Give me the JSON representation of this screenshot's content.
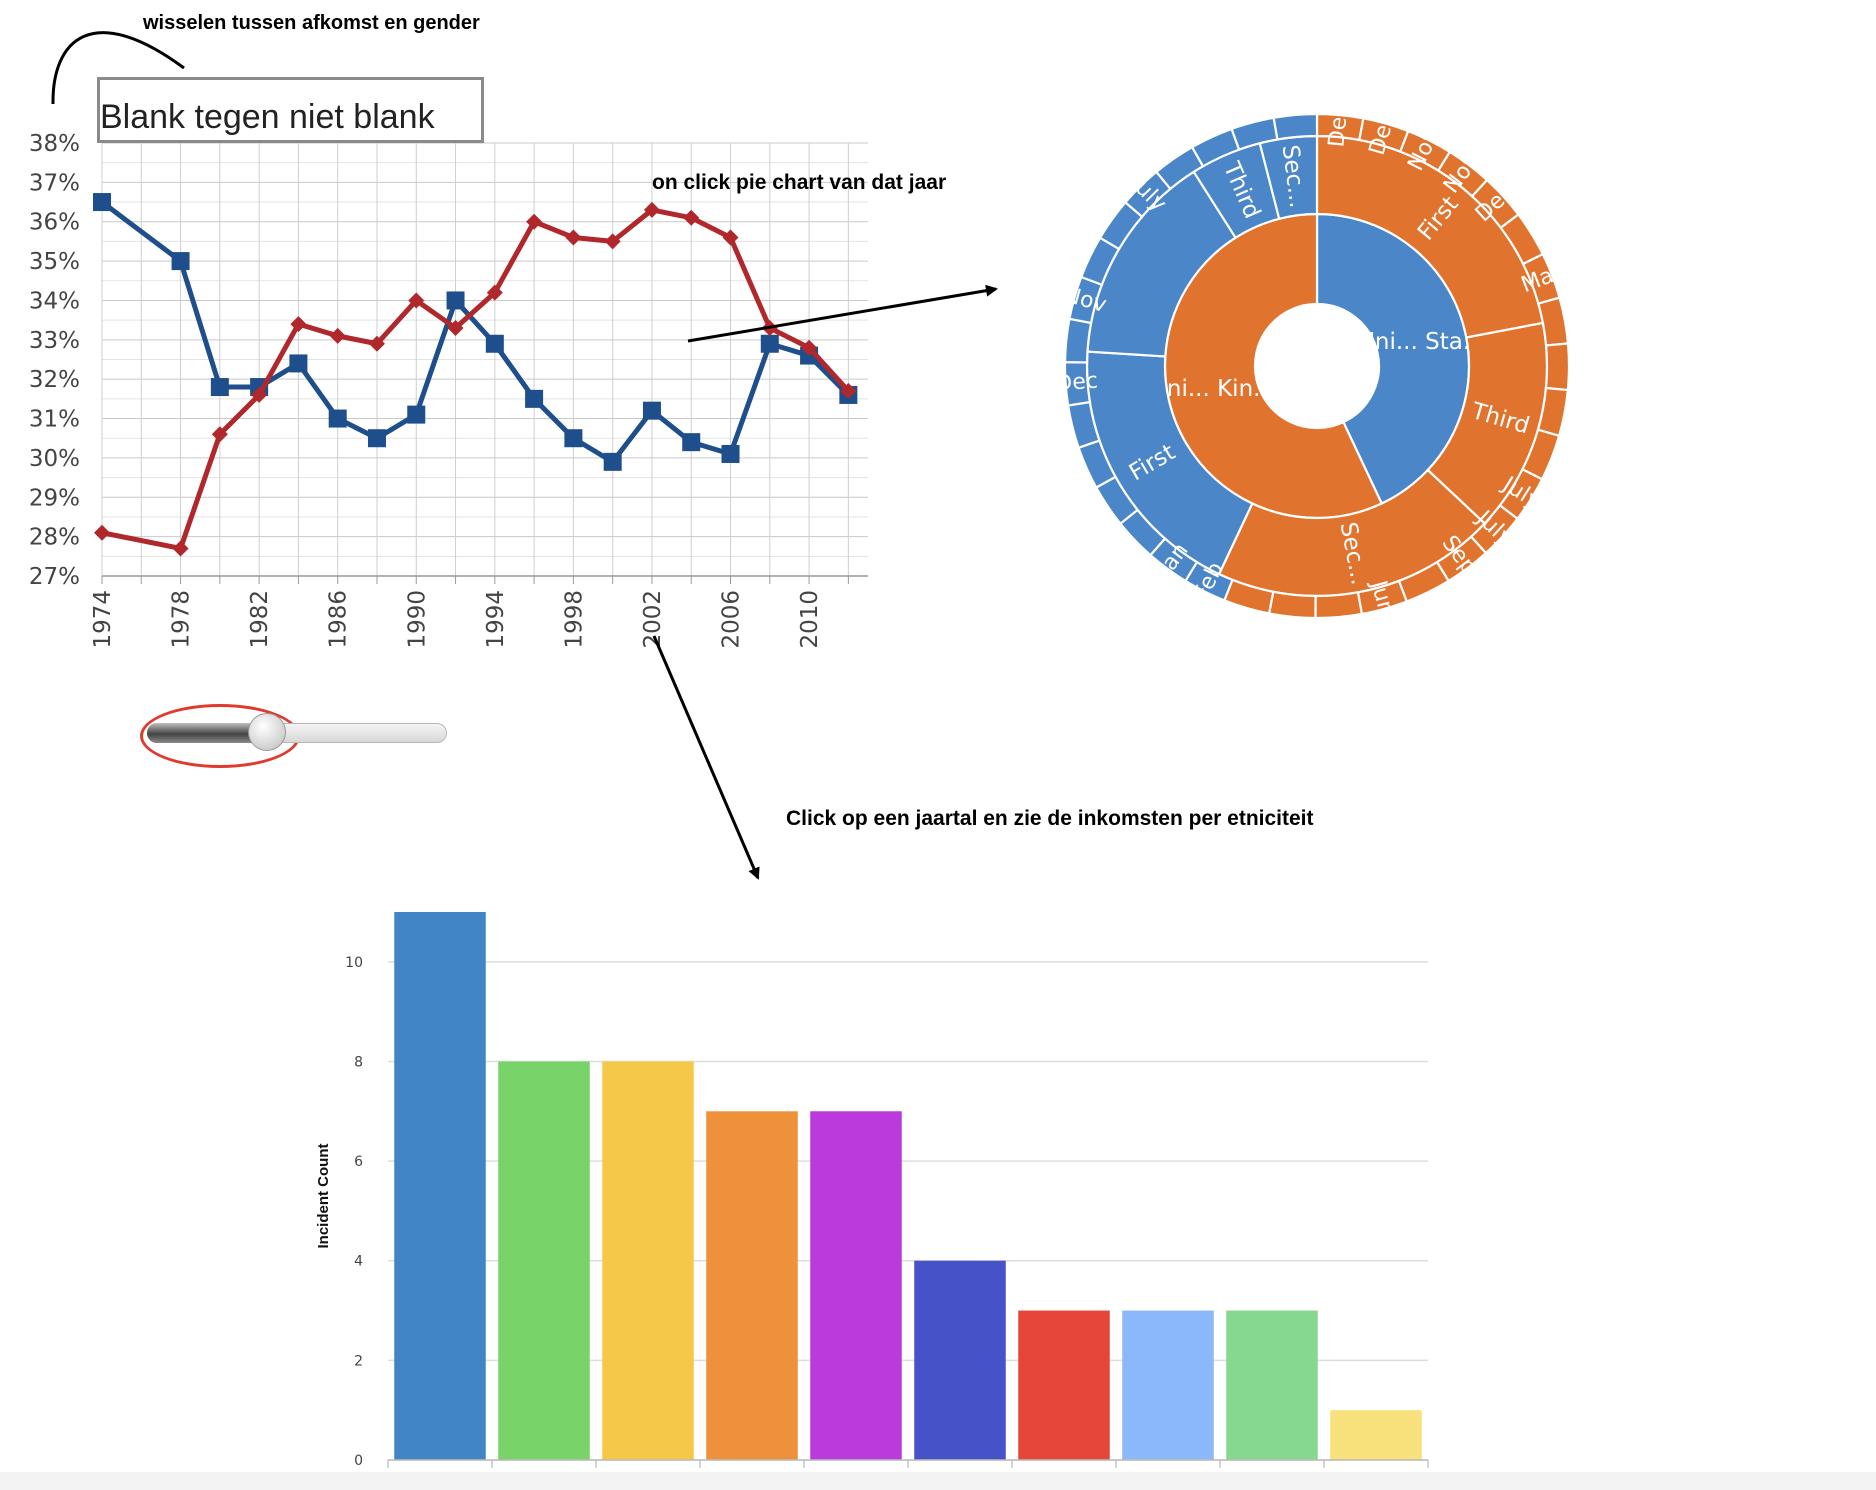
{
  "annotations": {
    "toggle_note": "wisselen tussen afkomst en gender",
    "pie_note": "on click pie chart van dat jaar",
    "bar_note": "Click op een jaartal en zie de inkomsten per etniciteit"
  },
  "toggle": {
    "label": "Blank tegen niet blank"
  },
  "slider": {
    "value": 0.4
  },
  "chart_data": [
    {
      "type": "line",
      "title": "",
      "ylim": [
        27,
        38
      ],
      "y_ticks": [
        "27%",
        "28%",
        "29%",
        "30%",
        "31%",
        "32%",
        "33%",
        "34%",
        "35%",
        "36%",
        "37%",
        "38%"
      ],
      "x_ticks": [
        "1974",
        "1978",
        "1982",
        "1986",
        "1990",
        "1994",
        "1998",
        "2002",
        "2006",
        "2010"
      ],
      "grid": true,
      "x": [
        1974,
        1978,
        1980,
        1982,
        1984,
        1986,
        1988,
        1990,
        1992,
        1994,
        1996,
        1998,
        2000,
        2002,
        2004,
        2006,
        2008,
        2010,
        2012
      ],
      "series": [
        {
          "values": [
            36.5,
            35.0,
            31.8,
            31.8,
            32.4,
            31.0,
            30.5,
            31.1,
            34.0,
            32.9,
            31.5,
            30.5,
            29.9,
            31.2,
            30.4,
            30.1,
            32.9,
            32.6,
            31.6
          ],
          "color": "#1f4e8c",
          "marker": "square"
        },
        {
          "values": [
            28.1,
            27.7,
            30.6,
            31.6,
            33.4,
            33.1,
            32.9,
            34.0,
            33.3,
            34.2,
            36.0,
            35.6,
            35.5,
            36.3,
            36.1,
            35.6,
            33.3,
            32.8,
            31.7
          ],
          "color": "#b0282b",
          "marker": "diamond"
        }
      ]
    },
    {
      "type": "sunburst",
      "title": "",
      "rings": [
        {
          "level": "inner",
          "segments": [
            {
              "label": "Uni... Sta...",
              "value": 43,
              "color": "#4a86c8"
            },
            {
              "label": "Uni... Kin...",
              "value": 57,
              "color": "#e0742e"
            }
          ]
        },
        {
          "level": "middle",
          "segments": [
            {
              "label": "First",
              "value": 22,
              "color": "#e0742e"
            },
            {
              "label": "Third",
              "value": 15,
              "color": "#e0742e"
            },
            {
              "label": "Sec...",
              "value": 20,
              "color": "#e0742e"
            },
            {
              "label": "First",
              "value": 19,
              "color": "#4a86c8"
            },
            {
              "label": "",
              "value": 15,
              "color": "#4a86c8"
            },
            {
              "label": "Third",
              "value": 5,
              "color": "#4a86c8"
            },
            {
              "label": "Sec...",
              "value": 4,
              "color": "#4a86c8"
            }
          ]
        },
        {
          "level": "outer",
          "segments": [
            {
              "label": "Dec",
              "value": 4.5,
              "color": "#e0742e"
            },
            {
              "label": "Dec",
              "value": 4.5,
              "color": "#e0742e"
            },
            {
              "label": "Nov",
              "value": 4.5,
              "color": "#e0742e"
            },
            {
              "label": "Nov",
              "value": 4.5,
              "color": "#e0742e"
            },
            {
              "label": "Dec",
              "value": 4.5,
              "color": "#e0742e"
            },
            {
              "label": "",
              "value": 4.5,
              "color": "#e0742e"
            },
            {
              "label": "Mar",
              "value": 4.5,
              "color": "#e0742e"
            },
            {
              "label": "",
              "value": 4.5,
              "color": "#e0742e"
            },
            {
              "label": "",
              "value": 4.5,
              "color": "#e0742e"
            },
            {
              "label": "",
              "value": 4.5,
              "color": "#e0742e"
            },
            {
              "label": "",
              "value": 4.5,
              "color": "#e0742e"
            },
            {
              "label": "July",
              "value": 4.5,
              "color": "#e0742e"
            },
            {
              "label": "July",
              "value": 4.5,
              "color": "#e0742e"
            },
            {
              "label": "Sept",
              "value": 4.5,
              "color": "#e0742e"
            },
            {
              "label": "",
              "value": 4.5,
              "color": "#e0742e"
            },
            {
              "label": "Jun",
              "value": 4.5,
              "color": "#e0742e"
            },
            {
              "label": "",
              "value": 4.5,
              "color": "#e0742e"
            },
            {
              "label": "",
              "value": 4.5,
              "color": "#e0742e"
            },
            {
              "label": "",
              "value": 4.5,
              "color": "#e0742e"
            },
            {
              "label": "Feb",
              "value": 4.2,
              "color": "#4a86c8"
            },
            {
              "label": "Jan",
              "value": 4.2,
              "color": "#4a86c8"
            },
            {
              "label": "",
              "value": 4.2,
              "color": "#4a86c8"
            },
            {
              "label": "",
              "value": 4.2,
              "color": "#4a86c8"
            },
            {
              "label": "",
              "value": 4.2,
              "color": "#4a86c8"
            },
            {
              "label": "",
              "value": 4.2,
              "color": "#4a86c8"
            },
            {
              "label": "Dec",
              "value": 4.2,
              "color": "#4a86c8"
            },
            {
              "label": "",
              "value": 4.2,
              "color": "#4a86c8"
            },
            {
              "label": "Nov",
              "value": 4.2,
              "color": "#4a86c8"
            },
            {
              "label": "",
              "value": 4.2,
              "color": "#4a86c8"
            },
            {
              "label": "",
              "value": 4.2,
              "color": "#4a86c8"
            },
            {
              "label": "July",
              "value": 4.2,
              "color": "#4a86c8"
            },
            {
              "label": "",
              "value": 4.2,
              "color": "#4a86c8"
            },
            {
              "label": "",
              "value": 4.2,
              "color": "#4a86c8"
            },
            {
              "label": "",
              "value": 4.2,
              "color": "#4a86c8"
            },
            {
              "label": "",
              "value": 4.2,
              "color": "#4a86c8"
            }
          ]
        }
      ]
    },
    {
      "type": "bar",
      "title": "",
      "xlabel": "",
      "ylabel": "Incident Count",
      "ylim": [
        0,
        11
      ],
      "y_ticks": [
        "0",
        "2",
        "4",
        "6",
        "8",
        "10"
      ],
      "grid": true,
      "values": [
        11,
        8,
        8,
        7,
        7,
        4,
        3,
        3,
        3,
        1
      ],
      "colors": [
        "#4285c6",
        "#78d368",
        "#f6c84a",
        "#ee913a",
        "#bb3adb",
        "#4652c8",
        "#e6453a",
        "#8ab8f8",
        "#86d88e",
        "#f8e07a"
      ]
    }
  ]
}
